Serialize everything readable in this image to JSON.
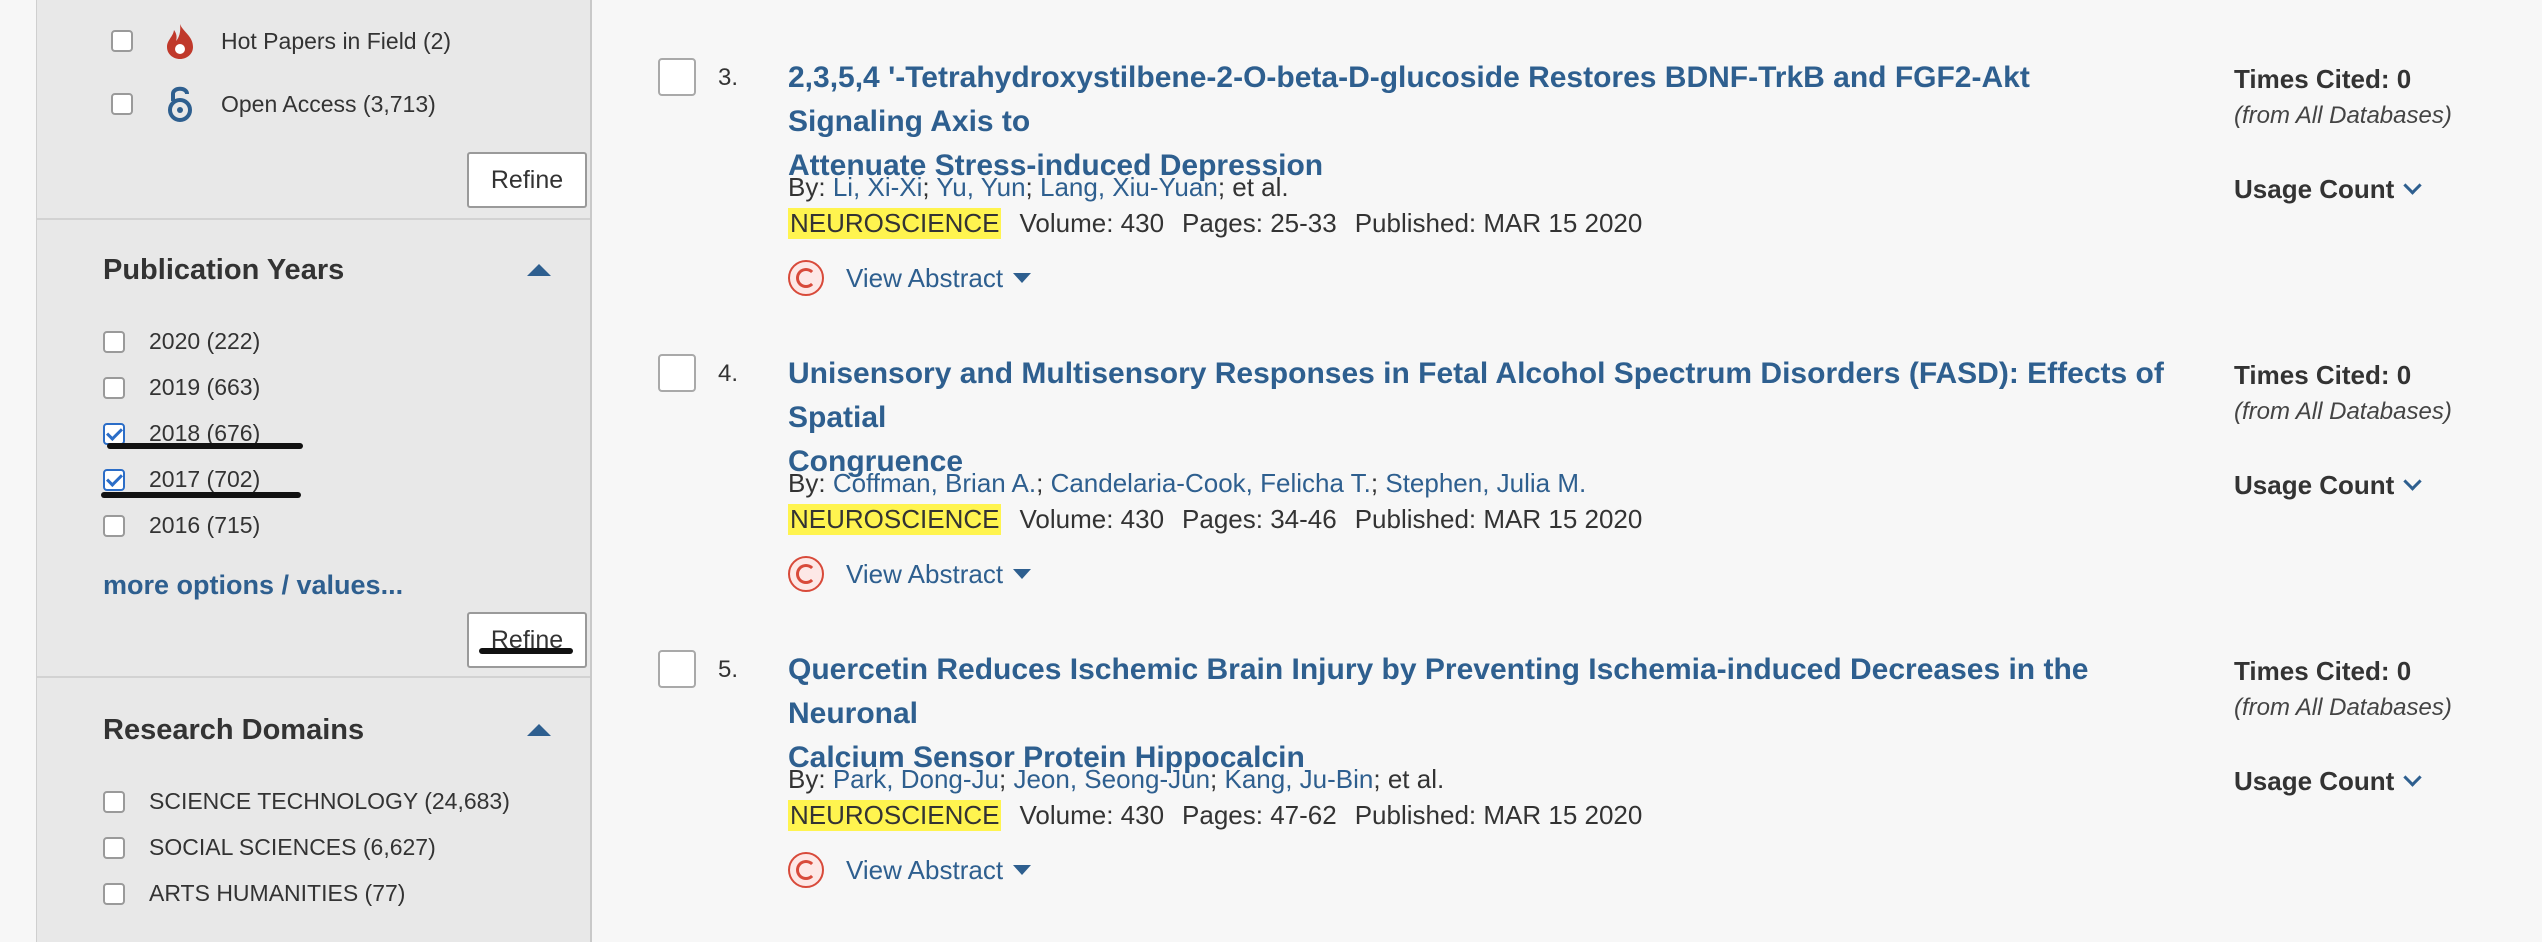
{
  "sidebar": {
    "top_filters": [
      {
        "label": "Hot Papers in Field (2)",
        "icon": "flame-icon",
        "checked": false
      },
      {
        "label": "Open Access (3,713)",
        "icon": "open-access-icon",
        "checked": false
      }
    ],
    "refine_label": "Refine",
    "publication_years": {
      "title": "Publication Years",
      "items": [
        {
          "label": "2020 (222)",
          "checked": false
        },
        {
          "label": "2019 (663)",
          "checked": false
        },
        {
          "label": "2018 (676)",
          "checked": true
        },
        {
          "label": "2017 (702)",
          "checked": true
        },
        {
          "label": "2016 (715)",
          "checked": false
        }
      ],
      "more_label": "more options / values...",
      "refine_label": "Refine"
    },
    "research_domains": {
      "title": "Research Domains",
      "items": [
        {
          "label": "SCIENCE TECHNOLOGY (24,683)",
          "checked": false
        },
        {
          "label": "SOCIAL SCIENCES (6,627)",
          "checked": false
        },
        {
          "label": "ARTS HUMANITIES (77)",
          "checked": false
        }
      ]
    }
  },
  "records": [
    {
      "number": "3.",
      "title_line1": "2,3,5,4 '-Tetrahydroxystilbene-2-O-beta-D-glucoside Restores BDNF-TrkB and FGF2-Akt Signaling Axis to",
      "title_line2": "Attenuate Stress-induced Depression",
      "by": "By:",
      "authors": [
        "Li, Xi-Xi",
        "Yu, Yun",
        "Lang, Xiu-Yuan"
      ],
      "et_al": "; et al.",
      "journal": "NEUROSCIENCE",
      "volume": "Volume: 430",
      "pages": "Pages: 25-33",
      "published": "Published: MAR 15 2020",
      "view_abstract": "View Abstract",
      "times_cited": "Times Cited: 0",
      "times_cited_sub": "(from All Databases)",
      "usage_count": "Usage Count"
    },
    {
      "number": "4.",
      "title_line1": "Unisensory and Multisensory Responses in Fetal Alcohol Spectrum Disorders (FASD): Effects of Spatial",
      "title_line2": "Congruence",
      "by": "By:",
      "authors": [
        "Coffman, Brian A.",
        "Candelaria-Cook, Felicha T.",
        "Stephen, Julia M."
      ],
      "et_al": "",
      "journal": "NEUROSCIENCE",
      "volume": "Volume: 430",
      "pages": "Pages: 34-46",
      "published": "Published: MAR 15 2020",
      "view_abstract": "View Abstract",
      "times_cited": "Times Cited: 0",
      "times_cited_sub": "(from All Databases)",
      "usage_count": "Usage Count"
    },
    {
      "number": "5.",
      "title_line1": "Quercetin Reduces Ischemic Brain Injury by Preventing Ischemia-induced Decreases in the Neuronal",
      "title_line2": "Calcium Sensor Protein Hippocalcin",
      "by": "By:",
      "authors": [
        "Park, Dong-Ju",
        "Jeon, Seong-Jun",
        "Kang, Ju-Bin"
      ],
      "et_al": "; et al.",
      "journal": "NEUROSCIENCE",
      "volume": "Volume: 430",
      "pages": "Pages: 47-62",
      "published": "Published: MAR 15 2020",
      "view_abstract": "View Abstract",
      "times_cited": "Times Cited: 0",
      "times_cited_sub": "(from All Databases)",
      "usage_count": "Usage Count"
    }
  ],
  "colors": {
    "link": "#2e5f8f",
    "highlight": "#fff44f",
    "sidebar_bg": "#e8e8e8",
    "checkbox_checked": "#2b6dc7"
  }
}
